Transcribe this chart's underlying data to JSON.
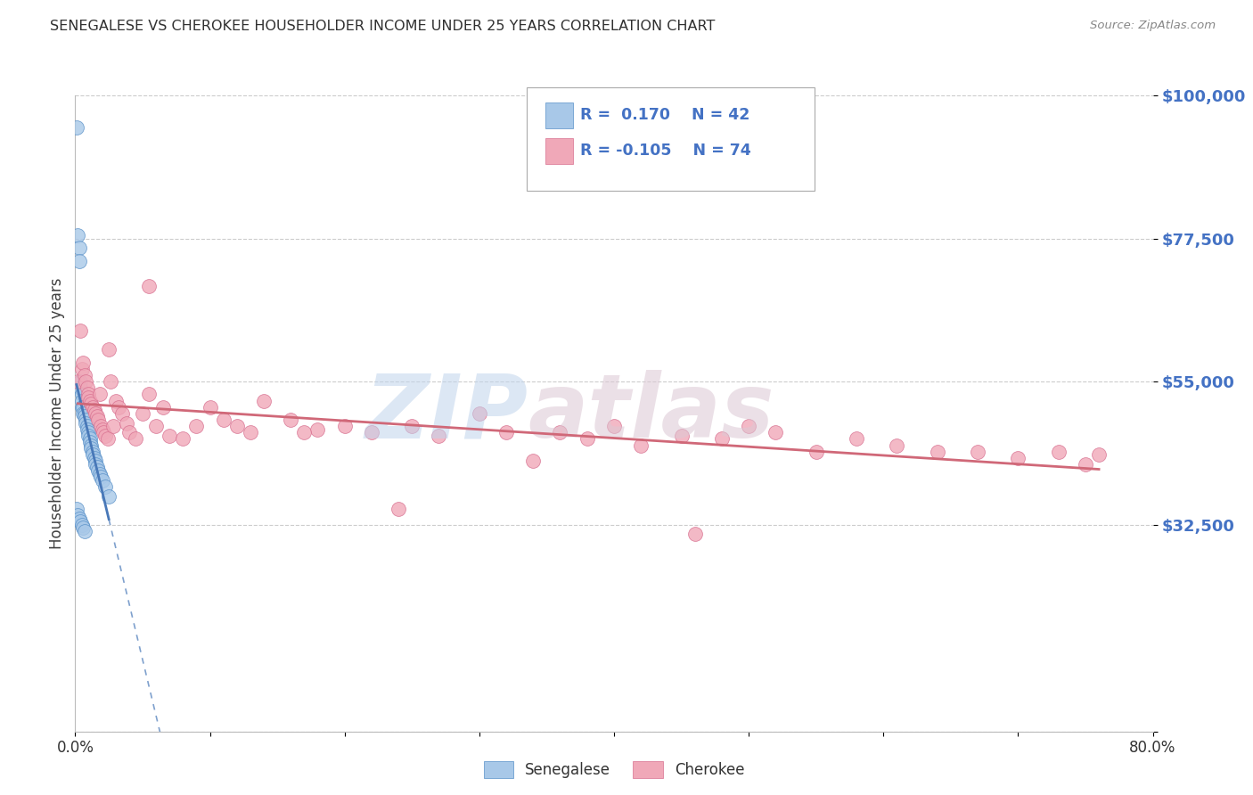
{
  "title": "SENEGALESE VS CHEROKEE HOUSEHOLDER INCOME UNDER 25 YEARS CORRELATION CHART",
  "source": "Source: ZipAtlas.com",
  "ylabel": "Householder Income Under 25 years",
  "xlim": [
    0.0,
    0.8
  ],
  "ylim": [
    0,
    100000
  ],
  "yticks": [
    0,
    32500,
    55000,
    77500,
    100000
  ],
  "ytick_labels": [
    "",
    "$32,500",
    "$55,000",
    "$77,500",
    "$100,000"
  ],
  "legend_label_blue": "Senegalese",
  "legend_label_pink": "Cherokee",
  "blue_fill": "#a8c8e8",
  "blue_edge": "#5890c8",
  "pink_fill": "#f0a8b8",
  "pink_edge": "#d87090",
  "blue_line": "#4878b8",
  "pink_line": "#d06878",
  "tick_color": "#4472c4",
  "grid_color": "#cccccc",
  "title_color": "#303030",
  "ylabel_color": "#404040",
  "source_color": "#888888",
  "senegalese_x": [
    0.001,
    0.002,
    0.003,
    0.003,
    0.004,
    0.004,
    0.005,
    0.005,
    0.005,
    0.006,
    0.006,
    0.007,
    0.007,
    0.008,
    0.008,
    0.009,
    0.009,
    0.01,
    0.01,
    0.011,
    0.011,
    0.012,
    0.012,
    0.013,
    0.013,
    0.014,
    0.015,
    0.015,
    0.016,
    0.017,
    0.018,
    0.019,
    0.02,
    0.022,
    0.025,
    0.001,
    0.002,
    0.003,
    0.004,
    0.005,
    0.006,
    0.007
  ],
  "senegalese_y": [
    95000,
    78000,
    76000,
    74000,
    55000,
    54000,
    53000,
    52000,
    51000,
    51000,
    50000,
    50000,
    49500,
    49000,
    48500,
    48000,
    47500,
    47000,
    46500,
    46000,
    45500,
    45000,
    44500,
    44000,
    43500,
    43000,
    42500,
    42000,
    41500,
    41000,
    40500,
    40000,
    39500,
    38500,
    37000,
    35000,
    34000,
    33500,
    33000,
    32500,
    32000,
    31500
  ],
  "cherokee_x": [
    0.002,
    0.004,
    0.005,
    0.006,
    0.007,
    0.008,
    0.009,
    0.01,
    0.01,
    0.011,
    0.012,
    0.013,
    0.014,
    0.015,
    0.016,
    0.017,
    0.018,
    0.019,
    0.02,
    0.021,
    0.022,
    0.024,
    0.025,
    0.026,
    0.028,
    0.03,
    0.032,
    0.035,
    0.038,
    0.04,
    0.045,
    0.05,
    0.055,
    0.06,
    0.065,
    0.07,
    0.08,
    0.09,
    0.1,
    0.11,
    0.12,
    0.13,
    0.14,
    0.16,
    0.18,
    0.2,
    0.22,
    0.25,
    0.27,
    0.3,
    0.32,
    0.36,
    0.38,
    0.4,
    0.42,
    0.45,
    0.48,
    0.5,
    0.52,
    0.55,
    0.58,
    0.61,
    0.64,
    0.67,
    0.7,
    0.73,
    0.76,
    0.055,
    0.17,
    0.24,
    0.34,
    0.46,
    0.75
  ],
  "cherokee_y": [
    55000,
    63000,
    57000,
    58000,
    56000,
    55000,
    54000,
    53000,
    52500,
    52000,
    51500,
    51000,
    50500,
    50000,
    49500,
    49000,
    53000,
    48000,
    47500,
    47000,
    46500,
    46000,
    60000,
    55000,
    48000,
    52000,
    51000,
    50000,
    48500,
    47000,
    46000,
    50000,
    53000,
    48000,
    51000,
    46500,
    46000,
    48000,
    51000,
    49000,
    48000,
    47000,
    52000,
    49000,
    47500,
    48000,
    47000,
    48000,
    46500,
    50000,
    47000,
    47000,
    46000,
    48000,
    45000,
    46500,
    46000,
    48000,
    47000,
    44000,
    46000,
    45000,
    44000,
    44000,
    43000,
    44000,
    43500,
    70000,
    47000,
    35000,
    42500,
    31000,
    42000
  ]
}
